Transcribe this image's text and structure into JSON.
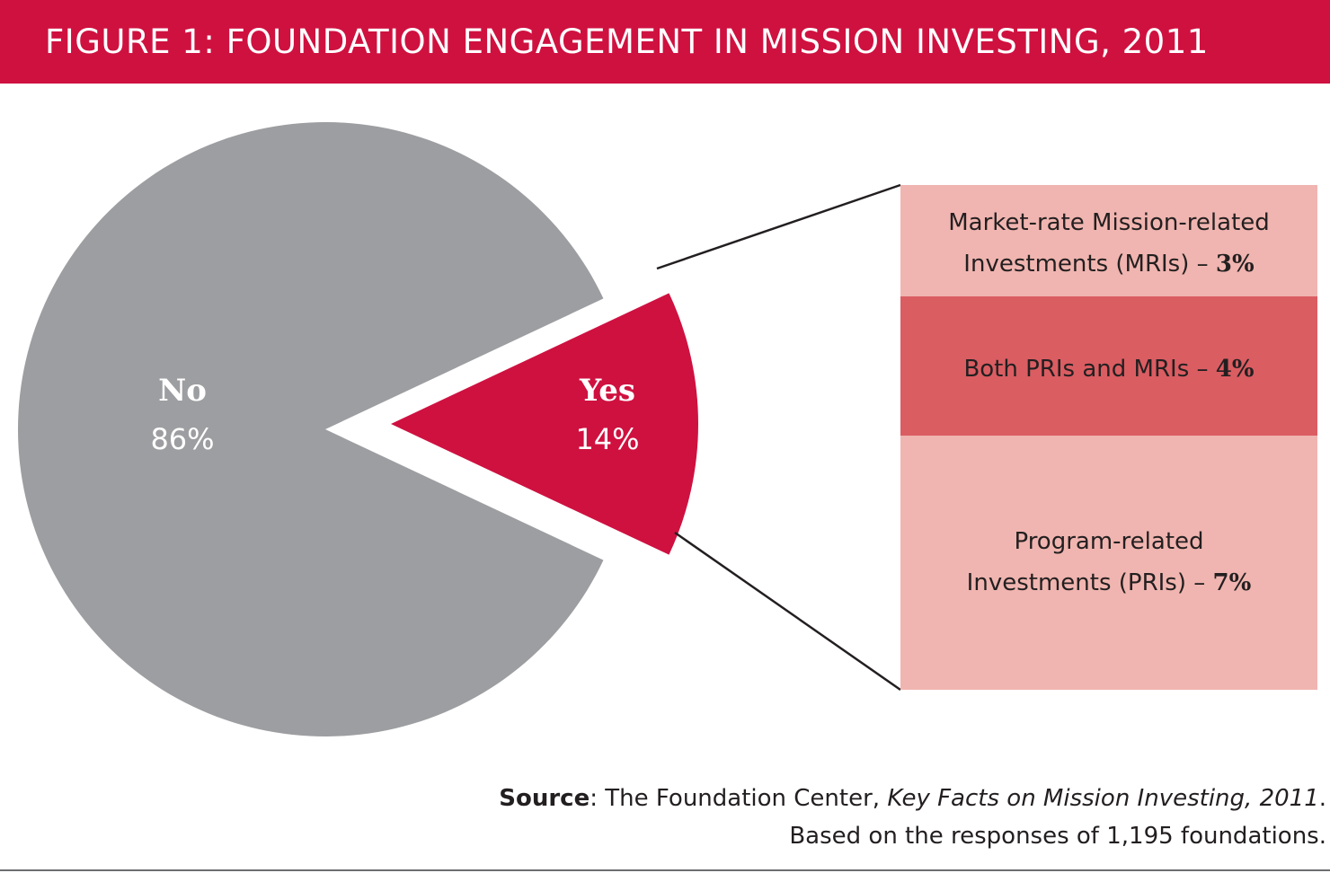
{
  "title": "FIGURE 1: FOUNDATION ENGAGEMENT IN MISSION INVESTING, 2011",
  "colors": {
    "title_bg": "#cf1140",
    "no_slice": "#9d9ea1",
    "yes_slice": "#cf1140",
    "breakdown_light": "#f0b5b0",
    "breakdown_dark": "#da5d62"
  },
  "chart_data": {
    "type": "pie",
    "slices": [
      {
        "name": "No",
        "value": 86,
        "label": "86%"
      },
      {
        "name": "Yes",
        "value": 14,
        "label": "14%"
      }
    ],
    "breakdown_of": "Yes",
    "breakdown": [
      {
        "text_line1": "Market-rate Mission-related",
        "text_line2": "Investments (MRIs) –",
        "value": 3,
        "value_label": "3%"
      },
      {
        "text_line1": "Both PRIs and MRIs –",
        "text_line2": "",
        "value": 4,
        "value_label": "4%"
      },
      {
        "text_line1": "Program-related",
        "text_line2": "Investments (PRIs) –",
        "value": 7,
        "value_label": "7%"
      }
    ]
  },
  "source": {
    "key": "Source",
    "text_before": ": The Foundation Center, ",
    "publication": "Key Facts on Mission Investing, 2011",
    "text_after": ".",
    "line2": "Based on the responses of 1,195 foundations."
  }
}
